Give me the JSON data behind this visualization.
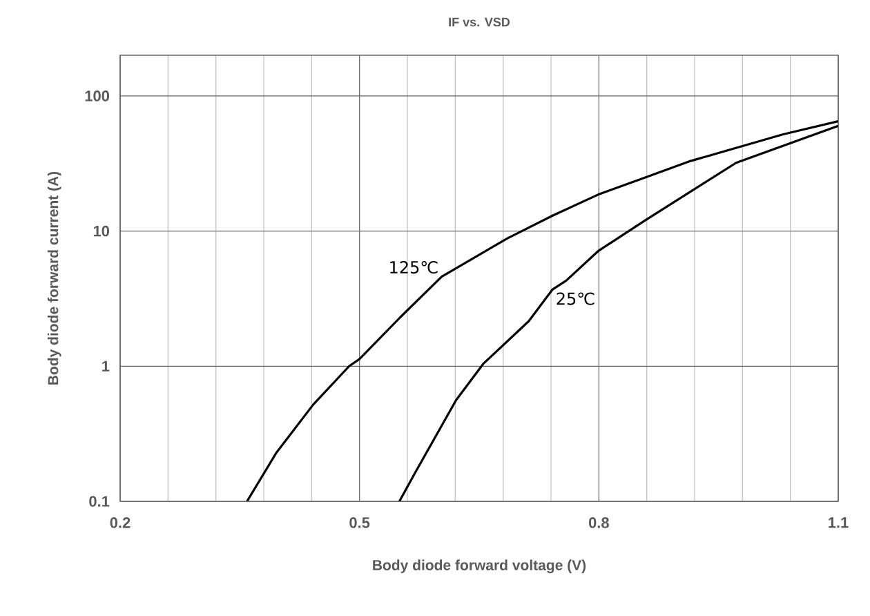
{
  "chart_data": {
    "type": "line",
    "title": "IF  vs.  VSD",
    "xlabel": "Body diode forward voltage (V)",
    "ylabel": "Body diode forward current (A)",
    "xlim": [
      0.2,
      1.1
    ],
    "xticks": [
      0.2,
      0.5,
      0.8,
      1.1
    ],
    "ylim": [
      0.1,
      200
    ],
    "yticks": [
      0.1,
      1,
      10,
      100
    ],
    "log": "y",
    "grid": true,
    "series": [
      {
        "name": "125℃",
        "color": "#000000",
        "x": [
          0.359,
          0.396,
          0.442,
          0.487,
          0.5,
          0.551,
          0.603,
          0.685,
          0.742,
          0.799,
          0.915,
          1.031,
          1.1
        ],
        "values": [
          0.1,
          0.23,
          0.52,
          1.0,
          1.13,
          2.3,
          4.6,
          8.8,
          13,
          18.6,
          33,
          52,
          65
        ]
      },
      {
        "name": "25℃",
        "color": "#000000",
        "x": [
          0.55,
          0.569,
          0.621,
          0.655,
          0.712,
          0.742,
          0.759,
          0.799,
          0.858,
          0.972,
          1.1
        ],
        "values": [
          0.1,
          0.16,
          0.56,
          1.04,
          2.15,
          3.7,
          4.3,
          7.1,
          12,
          32,
          60
        ]
      }
    ]
  }
}
